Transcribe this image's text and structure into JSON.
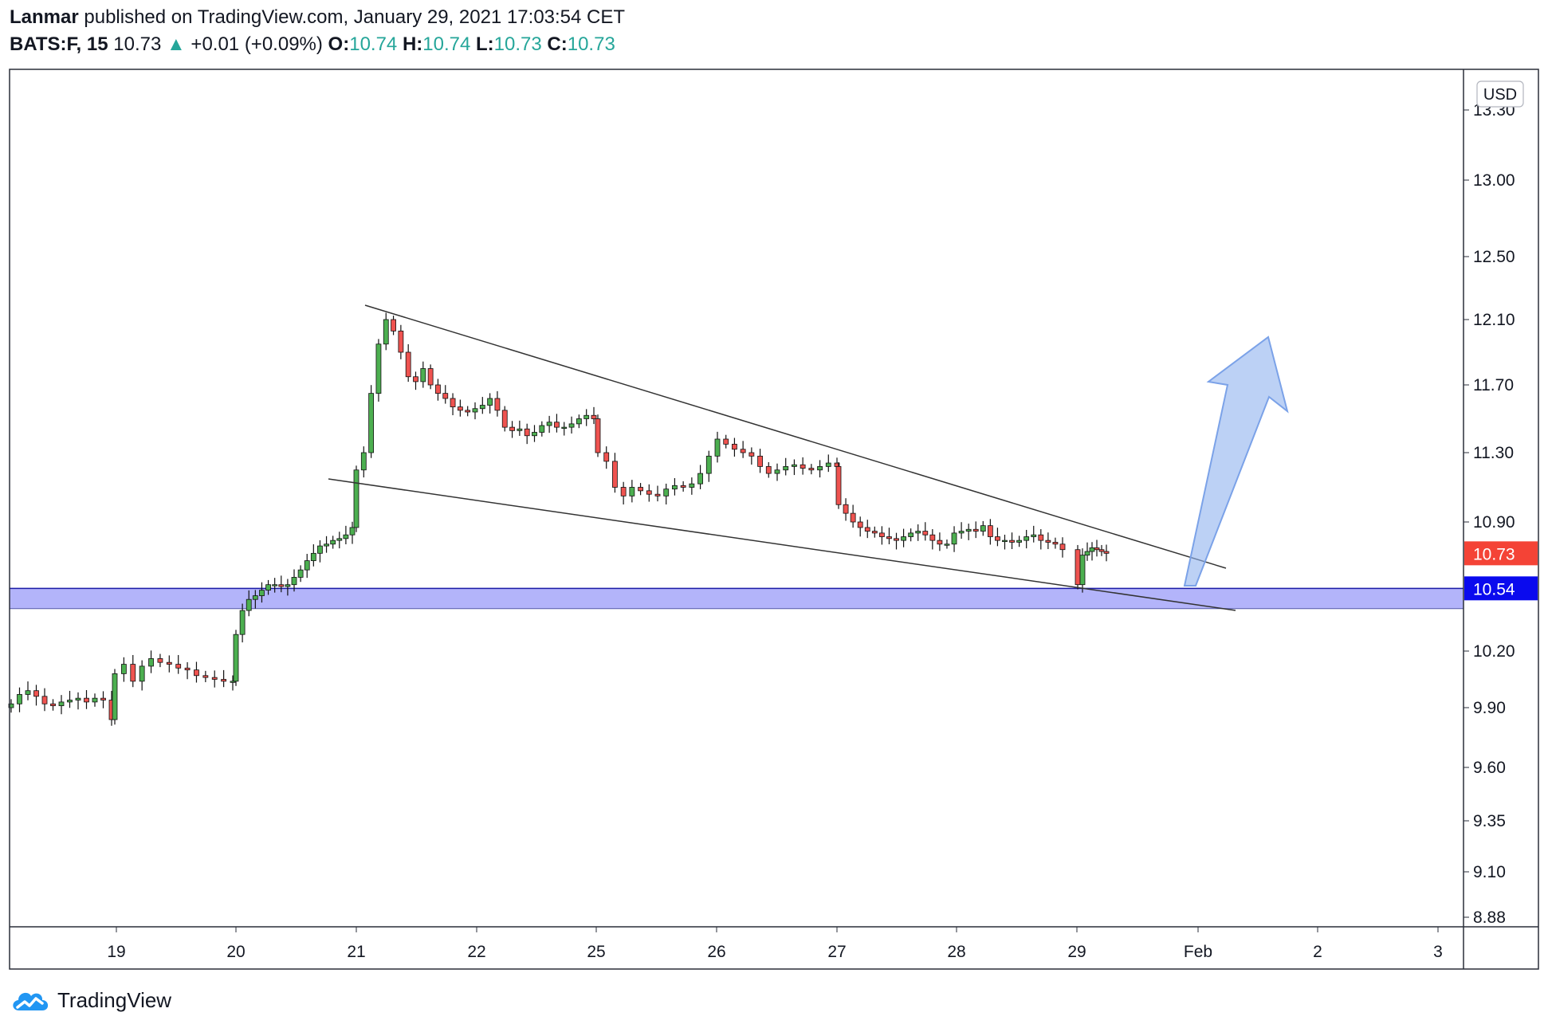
{
  "header": {
    "author": "Lanmar",
    "published_text": " published on TradingView.com, January 29, 2021 17:03:54 CET",
    "symbol": "BATS:F, 15",
    "last": "10.73",
    "change_arrow": "▲",
    "change": "+0.01 (+0.09%)",
    "o_label": "O:",
    "o_value": "10.74",
    "h_label": "H:",
    "h_value": "10.74",
    "l_label": "L:",
    "l_value": "10.73",
    "c_label": "C:",
    "c_value": "10.73"
  },
  "footer": {
    "brand": "TradingView"
  },
  "colors": {
    "up": "#26a69a",
    "candle_up": "#4caf50",
    "candle_down": "#ef5350",
    "zone_fill": "#b3b4fa",
    "zone_line": "#1a1aa6",
    "price_tag": "#f44336",
    "support_tag": "#0a0aee",
    "arrow": "#8fb3ee"
  },
  "chart_data": {
    "type": "candlestick",
    "title": "BATS:F, 15",
    "currency": "USD",
    "y_axis": {
      "ticks": [
        "13.30",
        "13.00",
        "12.50",
        "12.10",
        "11.70",
        "11.30",
        "10.90",
        "10.20",
        "9.90",
        "9.60",
        "9.35",
        "9.10",
        "8.88"
      ]
    },
    "x_axis": {
      "ticks": [
        "19",
        "20",
        "21",
        "22",
        "25",
        "26",
        "27",
        "28",
        "29",
        "Feb",
        "2",
        "3"
      ]
    },
    "last_price": "10.73",
    "support_level": "10.54",
    "support_zone": [
      10.43,
      10.54
    ],
    "series_closes": [
      [
        9.92,
        9.97,
        9.99,
        9.96,
        9.92,
        9.91,
        9.93,
        9.94,
        9.95,
        9.93,
        9.95,
        9.94,
        9.84
      ],
      [
        10.08,
        10.13,
        10.04,
        10.12,
        10.16,
        10.14,
        10.13,
        10.11,
        10.1,
        10.07,
        10.06,
        10.05,
        10.04,
        10.04
      ],
      [
        10.29,
        10.42,
        10.48,
        10.5,
        10.53,
        10.56,
        10.56,
        10.55,
        10.56,
        10.6,
        10.64,
        10.69,
        10.73,
        10.77,
        10.78,
        10.8,
        10.81,
        10.83,
        10.87
      ],
      [
        11.2,
        11.3,
        11.65,
        11.95,
        12.1,
        12.03,
        11.9,
        11.75,
        11.72,
        11.8,
        11.7,
        11.65,
        11.62,
        11.57,
        11.55,
        11.54,
        11.56,
        11.58,
        11.62,
        11.55,
        11.45,
        11.43,
        11.44,
        11.4,
        11.42,
        11.46,
        11.48,
        11.45,
        11.45,
        11.47,
        11.5,
        11.52,
        11.5
      ],
      [
        11.3,
        11.25,
        11.1,
        11.05,
        11.1,
        11.08,
        11.06,
        11.05,
        11.09,
        11.11,
        11.1,
        11.12,
        11.18,
        11.28,
        11.38,
        11.35,
        11.32,
        11.3,
        11.28,
        11.22,
        11.18,
        11.2,
        11.22,
        11.23,
        11.21,
        11.2,
        11.22,
        11.24,
        11.22
      ],
      [
        11.0,
        10.95,
        10.9,
        10.87,
        10.85,
        10.84,
        10.82,
        10.81,
        10.8,
        10.82,
        10.84,
        10.85,
        10.83,
        10.8,
        10.78,
        10.78,
        10.84,
        10.85,
        10.86,
        10.85,
        10.88,
        10.82,
        10.8,
        10.8,
        10.79,
        10.8,
        10.82,
        10.83,
        10.8,
        10.79,
        10.78,
        10.75
      ],
      [
        10.56,
        10.72,
        10.74,
        10.76,
        10.75,
        10.74,
        10.73
      ]
    ]
  }
}
